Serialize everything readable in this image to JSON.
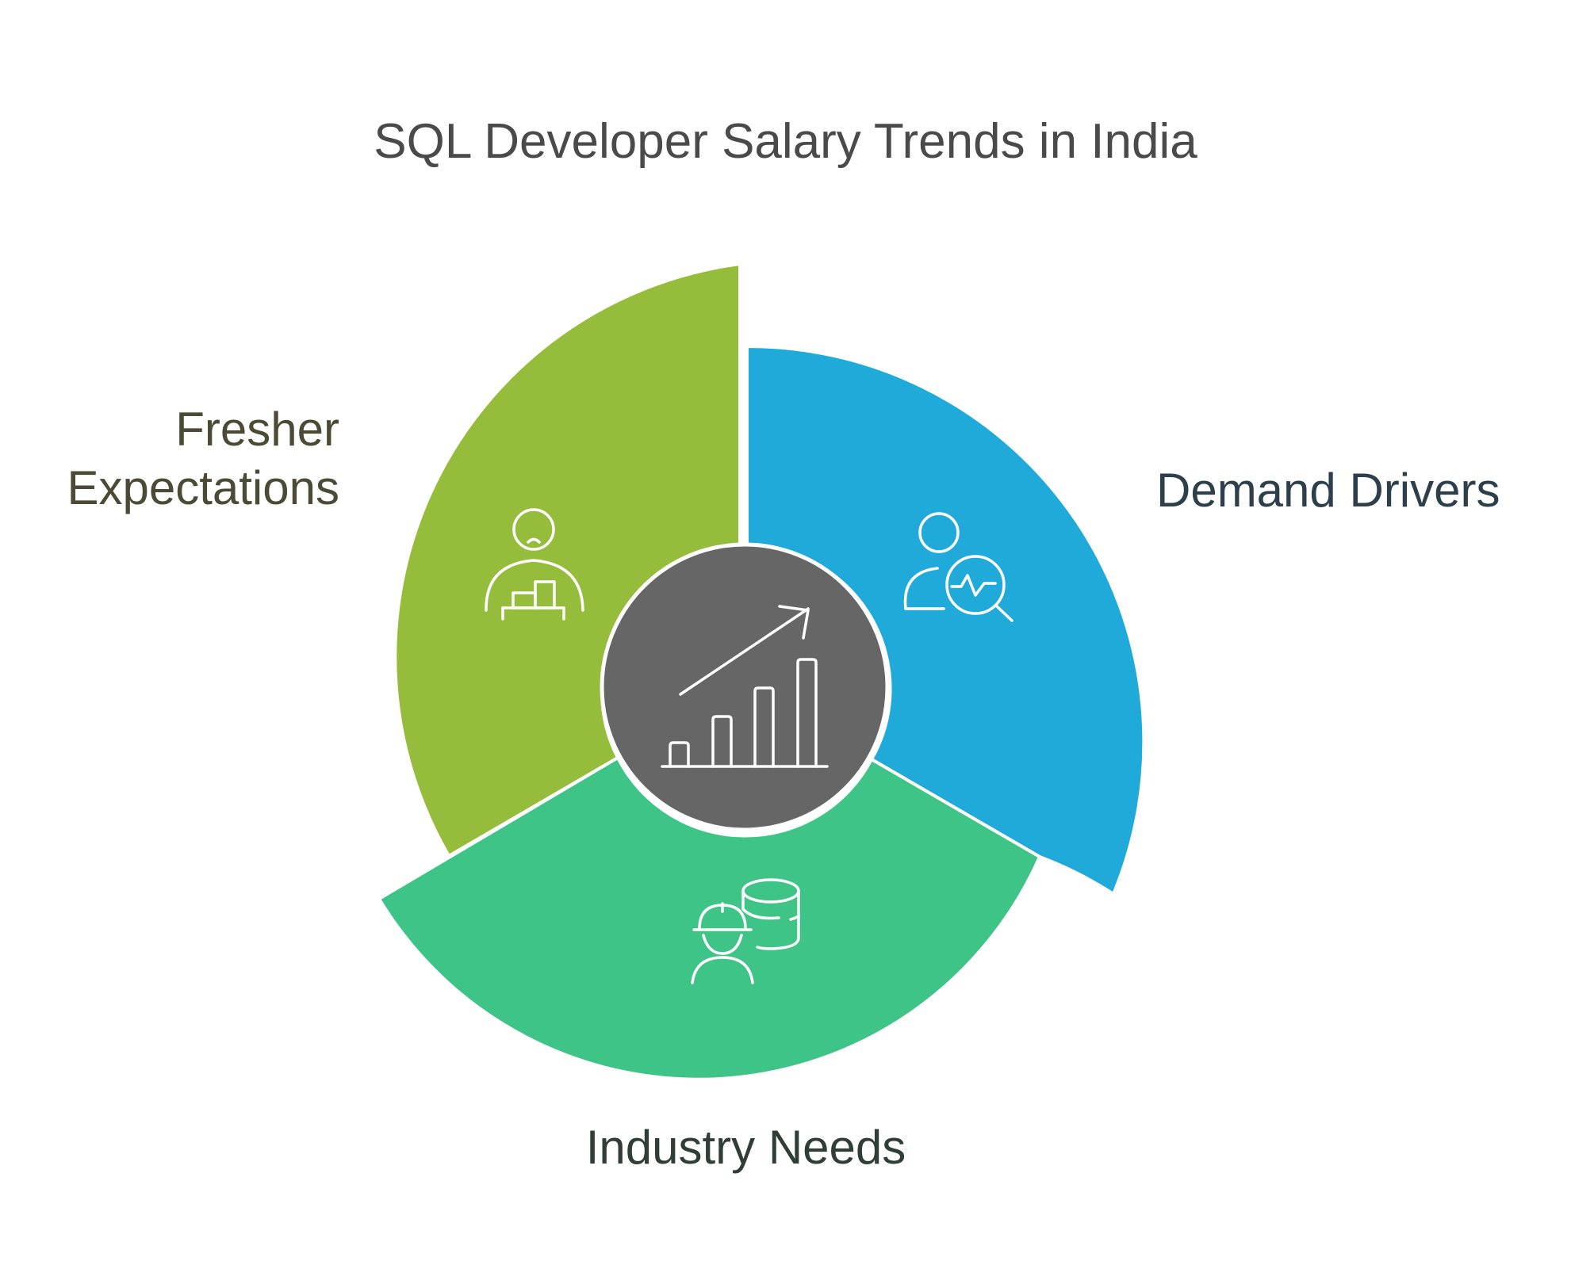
{
  "title": "SQL Developer Salary Trends in India",
  "center": {
    "icon": "bar-chart-trend-up-icon",
    "fill_color": "#666666"
  },
  "segments": [
    {
      "id": "fresher-expectations",
      "label_lines": [
        "Fresher",
        "Expectations"
      ],
      "color": "#95BD3B",
      "label_color": "#4A4A35",
      "icon": "person-podium-icon"
    },
    {
      "id": "demand-drivers",
      "label_lines": [
        "Demand Drivers"
      ],
      "color": "#20AADA",
      "label_color": "#2D3F4A",
      "icon": "person-analytics-search-icon"
    },
    {
      "id": "industry-needs",
      "label_lines": [
        "Industry Needs"
      ],
      "color": "#3EC486",
      "label_color": "#2F3E36",
      "icon": "worker-database-icon"
    }
  ]
}
